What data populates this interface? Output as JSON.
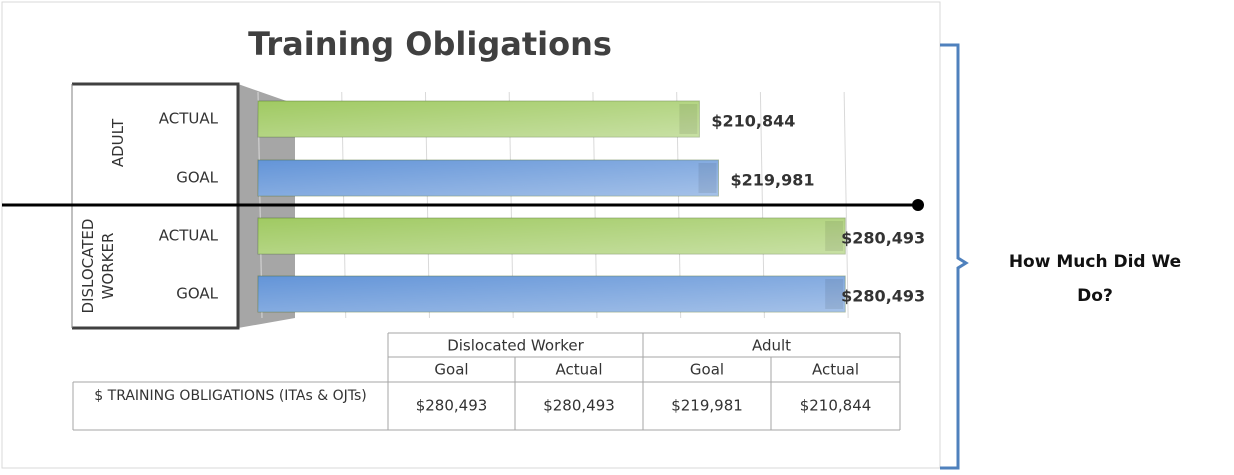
{
  "chart_data": {
    "type": "bar",
    "orientation": "horizontal",
    "title": "Training Obligations",
    "groups": [
      "ADULT",
      "DISLOCATED WORKER"
    ],
    "categories": [
      "ACTUAL",
      "GOAL",
      "ACTUAL",
      "GOAL"
    ],
    "values": [
      210844,
      219981,
      280493,
      280493
    ],
    "value_labels": [
      "$210,844",
      "$219,981",
      "$280,493",
      "$280,493"
    ],
    "colors": [
      "#9bc75a",
      "#5b8fd6",
      "#9bc75a",
      "#5b8fd6"
    ],
    "xlim": [
      0,
      300000
    ],
    "xticks": [
      0,
      40000,
      80000,
      120000,
      160000,
      200000,
      240000,
      280000
    ],
    "grid": true,
    "data_table": {
      "header": [
        "Dislocated Worker",
        "Adult"
      ],
      "subheader": [
        "Goal",
        "Actual",
        "Goal",
        "Actual"
      ],
      "row_label": "$ TRAINING OBLIGATIONS (ITAs & OJTs)",
      "cells": [
        "$280,493",
        "$280,493",
        "$219,981",
        "$210,844"
      ]
    },
    "annotation": "How Much Did We Do?"
  }
}
